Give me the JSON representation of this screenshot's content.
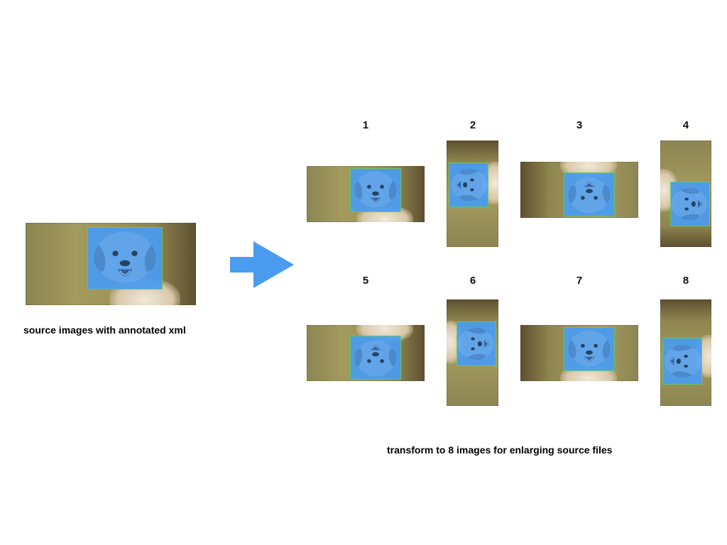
{
  "source": {
    "caption": "source images with annotated xml"
  },
  "arrow": {
    "color": "#4a9cf0"
  },
  "results": {
    "caption": "transform to 8 images for enlarging source files",
    "labels": [
      "1",
      "2",
      "3",
      "4",
      "5",
      "6",
      "7",
      "8"
    ]
  },
  "colors": {
    "bbox": "#4a9cf0",
    "bbox_border": "#67c76c"
  }
}
